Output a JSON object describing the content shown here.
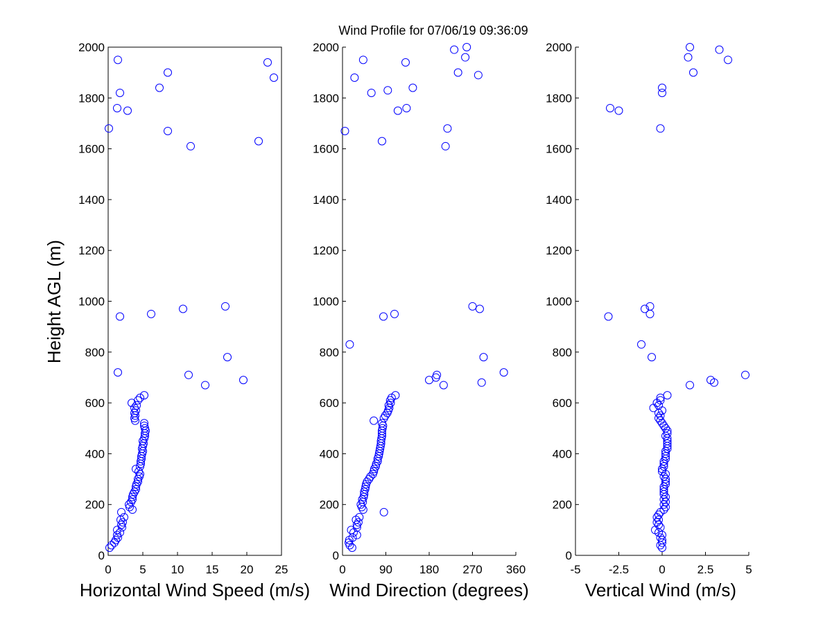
{
  "chart_data": {
    "type": "scatter",
    "title": "Wind Profile for  07/06/19 09:36:09",
    "ylabel": "Height AGL (m)",
    "ylim": [
      0,
      2000
    ],
    "yticks": [
      0,
      200,
      400,
      600,
      800,
      1000,
      1200,
      1400,
      1600,
      1800,
      2000
    ],
    "ytick_labels": [
      "0",
      "200",
      "400",
      "600",
      "800",
      "1000",
      "1200",
      "1400",
      "1600",
      "1800",
      "2000"
    ],
    "marker_color": "#0000ff",
    "panels": [
      {
        "id": "speed",
        "xlabel": "Horizontal Wind Speed (m/s)",
        "xlim": [
          0,
          25
        ],
        "xticks": [
          0,
          5,
          10,
          15,
          20,
          25
        ],
        "xtick_labels": [
          "0",
          "5",
          "10",
          "15",
          "20",
          "25"
        ],
        "points": [
          [
            0.2,
            30
          ],
          [
            0.5,
            40
          ],
          [
            0.9,
            50
          ],
          [
            1.1,
            60
          ],
          [
            1.4,
            70
          ],
          [
            1.3,
            80
          ],
          [
            1.7,
            90
          ],
          [
            1.3,
            100
          ],
          [
            2.0,
            110
          ],
          [
            1.9,
            120
          ],
          [
            2.1,
            130
          ],
          [
            1.8,
            140
          ],
          [
            2.3,
            150
          ],
          [
            1.9,
            170
          ],
          [
            3.5,
            180
          ],
          [
            3.1,
            190
          ],
          [
            3.0,
            200
          ],
          [
            3.3,
            210
          ],
          [
            3.5,
            220
          ],
          [
            3.5,
            230
          ],
          [
            3.6,
            240
          ],
          [
            3.8,
            250
          ],
          [
            4.0,
            260
          ],
          [
            4.0,
            270
          ],
          [
            4.1,
            280
          ],
          [
            4.3,
            290
          ],
          [
            4.3,
            300
          ],
          [
            4.5,
            310
          ],
          [
            4.6,
            320
          ],
          [
            4.4,
            330
          ],
          [
            4.0,
            340
          ],
          [
            4.6,
            350
          ],
          [
            4.7,
            360
          ],
          [
            4.7,
            370
          ],
          [
            4.8,
            380
          ],
          [
            4.8,
            390
          ],
          [
            4.9,
            400
          ],
          [
            5.0,
            410
          ],
          [
            4.9,
            420
          ],
          [
            5.0,
            430
          ],
          [
            5.1,
            440
          ],
          [
            5.0,
            450
          ],
          [
            5.2,
            460
          ],
          [
            5.3,
            470
          ],
          [
            5.3,
            480
          ],
          [
            5.4,
            490
          ],
          [
            5.3,
            500
          ],
          [
            5.2,
            510
          ],
          [
            5.2,
            520
          ],
          [
            3.9,
            530
          ],
          [
            3.8,
            540
          ],
          [
            3.9,
            550
          ],
          [
            3.8,
            560
          ],
          [
            4.0,
            570
          ],
          [
            3.8,
            580
          ],
          [
            4.1,
            590
          ],
          [
            3.4,
            600
          ],
          [
            4.3,
            610
          ],
          [
            4.6,
            620
          ],
          [
            5.2,
            630
          ],
          [
            14.0,
            670
          ],
          [
            19.5,
            690
          ],
          [
            11.6,
            710
          ],
          [
            1.4,
            720
          ],
          [
            17.2,
            780
          ],
          [
            1.7,
            940
          ],
          [
            6.2,
            950
          ],
          [
            10.8,
            970
          ],
          [
            16.9,
            980
          ],
          [
            21.7,
            1630
          ],
          [
            8.6,
            1670
          ],
          [
            0.1,
            1680
          ],
          [
            11.9,
            1610
          ],
          [
            2.8,
            1750
          ],
          [
            1.3,
            1760
          ],
          [
            7.4,
            1840
          ],
          [
            1.7,
            1820
          ],
          [
            23.9,
            1880
          ],
          [
            8.6,
            1900
          ],
          [
            23.0,
            1940
          ],
          [
            1.4,
            1950
          ]
        ]
      },
      {
        "id": "direction",
        "xlabel": "Wind Direction (degrees)",
        "xlim": [
          0,
          360
        ],
        "xticks": [
          0,
          90,
          180,
          270,
          360
        ],
        "xtick_labels": [
          "0",
          "90",
          "180",
          "270",
          "360"
        ],
        "points": [
          [
            20,
            30
          ],
          [
            15,
            40
          ],
          [
            13,
            50
          ],
          [
            14,
            60
          ],
          [
            21,
            70
          ],
          [
            30,
            80
          ],
          [
            23,
            90
          ],
          [
            18,
            100
          ],
          [
            30,
            110
          ],
          [
            30,
            120
          ],
          [
            33,
            130
          ],
          [
            28,
            140
          ],
          [
            35,
            150
          ],
          [
            86,
            170
          ],
          [
            43,
            180
          ],
          [
            40,
            190
          ],
          [
            38,
            200
          ],
          [
            42,
            210
          ],
          [
            41,
            220
          ],
          [
            44,
            230
          ],
          [
            45,
            240
          ],
          [
            45,
            250
          ],
          [
            47,
            260
          ],
          [
            48,
            270
          ],
          [
            49,
            280
          ],
          [
            51,
            290
          ],
          [
            55,
            300
          ],
          [
            58,
            310
          ],
          [
            63,
            320
          ],
          [
            65,
            330
          ],
          [
            66,
            340
          ],
          [
            69,
            350
          ],
          [
            70,
            360
          ],
          [
            73,
            370
          ],
          [
            73,
            380
          ],
          [
            75,
            390
          ],
          [
            76,
            400
          ],
          [
            77,
            410
          ],
          [
            78,
            420
          ],
          [
            79,
            430
          ],
          [
            80,
            440
          ],
          [
            80,
            450
          ],
          [
            81,
            460
          ],
          [
            82,
            470
          ],
          [
            82,
            480
          ],
          [
            82,
            490
          ],
          [
            83,
            500
          ],
          [
            84,
            510
          ],
          [
            82,
            520
          ],
          [
            65,
            530
          ],
          [
            86,
            540
          ],
          [
            89,
            550
          ],
          [
            93,
            560
          ],
          [
            95,
            570
          ],
          [
            97,
            580
          ],
          [
            96,
            590
          ],
          [
            100,
            600
          ],
          [
            99,
            610
          ],
          [
            102,
            620
          ],
          [
            110,
            630
          ],
          [
            210,
            670
          ],
          [
            180,
            690
          ],
          [
            194,
            700
          ],
          [
            196,
            710
          ],
          [
            335,
            720
          ],
          [
            289,
            680
          ],
          [
            293,
            780
          ],
          [
            15,
            830
          ],
          [
            85,
            940
          ],
          [
            108,
            950
          ],
          [
            285,
            970
          ],
          [
            270,
            980
          ],
          [
            5,
            1670
          ],
          [
            218,
            1680
          ],
          [
            214,
            1610
          ],
          [
            82,
            1630
          ],
          [
            115,
            1750
          ],
          [
            133,
            1760
          ],
          [
            146,
            1840
          ],
          [
            60,
            1820
          ],
          [
            25,
            1880
          ],
          [
            94,
            1830
          ],
          [
            282,
            1890
          ],
          [
            240,
            1900
          ],
          [
            43,
            1950
          ],
          [
            131,
            1940
          ],
          [
            255,
            1960
          ],
          [
            232,
            1990
          ],
          [
            258,
            2000
          ]
        ]
      },
      {
        "id": "vertical",
        "xlabel": "Vertical Wind (m/s)",
        "xlim": [
          -5,
          5
        ],
        "xticks": [
          -5,
          -2.5,
          0,
          2.5,
          5
        ],
        "xtick_labels": [
          "-5",
          "-2.5",
          "0",
          "2.5",
          "5"
        ],
        "points": [
          [
            0.0,
            30
          ],
          [
            -0.1,
            40
          ],
          [
            0.0,
            50
          ],
          [
            0.0,
            60
          ],
          [
            -0.1,
            70
          ],
          [
            0.0,
            80
          ],
          [
            -0.2,
            90
          ],
          [
            -0.4,
            100
          ],
          [
            -0.1,
            110
          ],
          [
            -0.2,
            120
          ],
          [
            -0.3,
            130
          ],
          [
            -0.2,
            140
          ],
          [
            -0.3,
            150
          ],
          [
            -0.2,
            160
          ],
          [
            -0.1,
            170
          ],
          [
            0.1,
            180
          ],
          [
            0.2,
            190
          ],
          [
            0.1,
            200
          ],
          [
            0.2,
            210
          ],
          [
            0.1,
            220
          ],
          [
            0.2,
            230
          ],
          [
            0.1,
            240
          ],
          [
            0.1,
            250
          ],
          [
            0.1,
            260
          ],
          [
            0.1,
            270
          ],
          [
            0.2,
            280
          ],
          [
            0.2,
            290
          ],
          [
            0.2,
            300
          ],
          [
            0.1,
            310
          ],
          [
            0.2,
            320
          ],
          [
            0.0,
            330
          ],
          [
            0.0,
            340
          ],
          [
            0.1,
            350
          ],
          [
            0.1,
            360
          ],
          [
            0.1,
            370
          ],
          [
            0.2,
            380
          ],
          [
            0.2,
            390
          ],
          [
            0.2,
            400
          ],
          [
            0.2,
            410
          ],
          [
            0.3,
            420
          ],
          [
            0.3,
            430
          ],
          [
            0.3,
            440
          ],
          [
            0.3,
            450
          ],
          [
            0.3,
            460
          ],
          [
            0.2,
            470
          ],
          [
            0.3,
            480
          ],
          [
            0.3,
            490
          ],
          [
            0.2,
            500
          ],
          [
            0.1,
            510
          ],
          [
            0.0,
            520
          ],
          [
            -0.1,
            530
          ],
          [
            -0.2,
            540
          ],
          [
            -0.1,
            550
          ],
          [
            -0.2,
            560
          ],
          [
            0.0,
            570
          ],
          [
            -0.5,
            580
          ],
          [
            -0.2,
            590
          ],
          [
            -0.3,
            600
          ],
          [
            -0.1,
            610
          ],
          [
            -0.1,
            620
          ],
          [
            0.3,
            630
          ],
          [
            1.6,
            670
          ],
          [
            2.8,
            690
          ],
          [
            3.0,
            680
          ],
          [
            4.8,
            710
          ],
          [
            -0.6,
            780
          ],
          [
            -1.2,
            830
          ],
          [
            -3.1,
            940
          ],
          [
            -0.7,
            950
          ],
          [
            -1.0,
            970
          ],
          [
            -0.7,
            980
          ],
          [
            -0.1,
            1680
          ],
          [
            -2.5,
            1750
          ],
          [
            -3.0,
            1760
          ],
          [
            0.0,
            1820
          ],
          [
            0.0,
            1840
          ],
          [
            1.8,
            1900
          ],
          [
            1.5,
            1960
          ],
          [
            3.8,
            1950
          ],
          [
            3.3,
            1990
          ],
          [
            1.6,
            2000
          ]
        ]
      }
    ]
  }
}
